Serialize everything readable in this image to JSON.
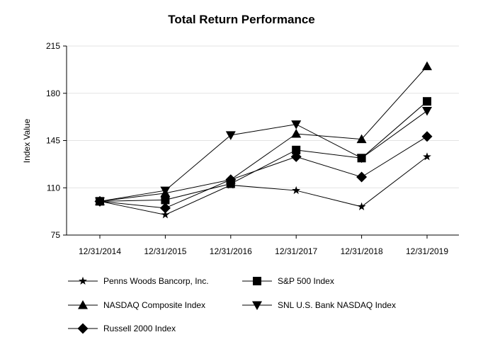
{
  "chart_data": {
    "type": "line",
    "title": "Total Return Performance",
    "xlabel": "",
    "ylabel": "Index Value",
    "ylim": [
      75,
      215
    ],
    "yticks": [
      75,
      110,
      145,
      180,
      215
    ],
    "categories": [
      "12/31/2014",
      "12/31/2015",
      "12/31/2016",
      "12/31/2017",
      "12/31/2018",
      "12/31/2019"
    ],
    "grid": true,
    "legend_position": "bottom",
    "series": [
      {
        "name": "Penns Woods Bancorp, Inc.",
        "marker": "star",
        "values": [
          100,
          90,
          112,
          108,
          96,
          133
        ]
      },
      {
        "name": "S&P 500 Index",
        "marker": "square",
        "values": [
          100,
          101,
          113,
          138,
          132,
          174
        ]
      },
      {
        "name": "NASDAQ Composite Index",
        "marker": "triangle-up",
        "values": [
          100,
          106,
          116,
          150,
          146,
          200
        ]
      },
      {
        "name": "SNL U.S. Bank NASDAQ Index",
        "marker": "triangle-down",
        "values": [
          100,
          108,
          149,
          157,
          132,
          167
        ]
      },
      {
        "name": "Russell 2000 Index",
        "marker": "diamond",
        "values": [
          100,
          95,
          116,
          133,
          118,
          148
        ]
      }
    ]
  }
}
